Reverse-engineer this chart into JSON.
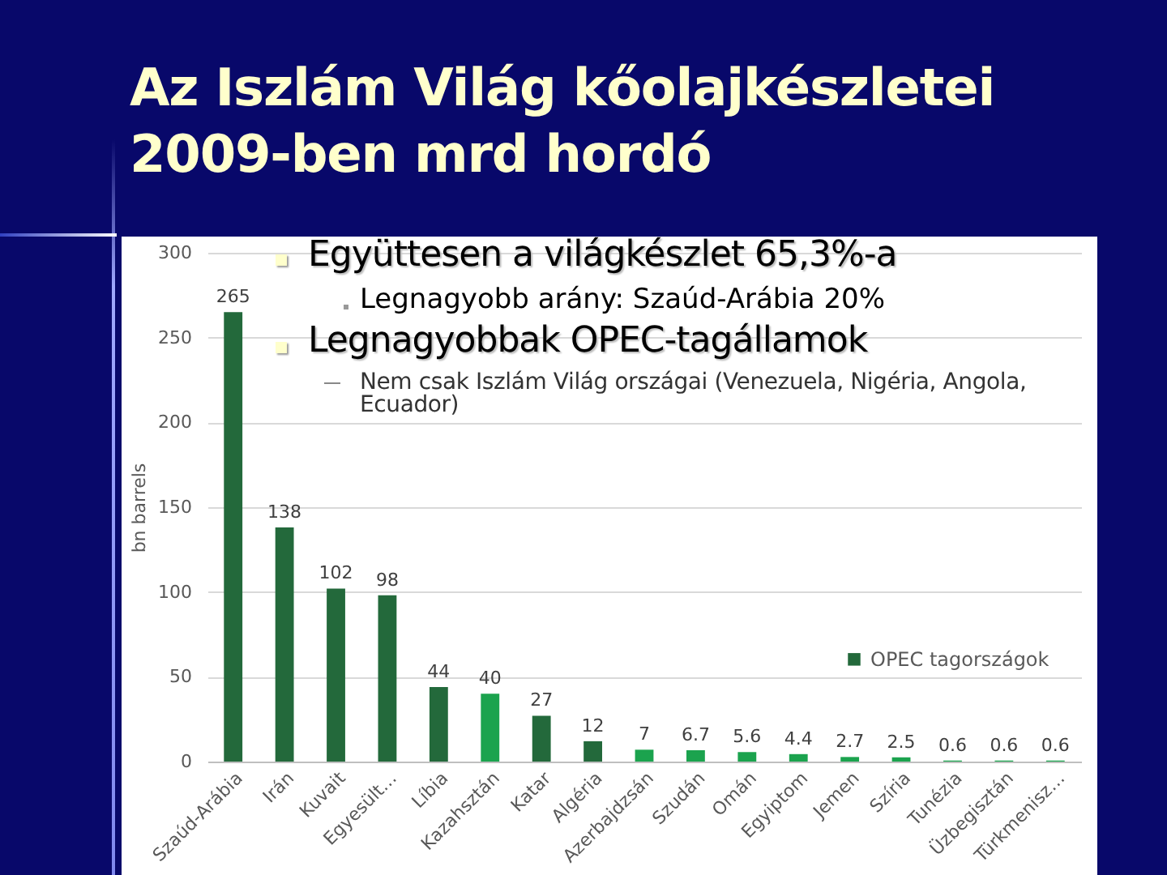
{
  "chart_data": {
    "type": "bar",
    "title": "Az Iszlám Világ kőolajkészletei 2009-ben mrd hordó",
    "ylabel": "bn barrels",
    "categories": [
      "Szaúd-Arábia",
      "Irán",
      "Kuvait",
      "Egyesült…",
      "Líbia",
      "Kazahsztán",
      "Katar",
      "Algéria",
      "Azerbajdzsán",
      "Szudán",
      "Omán",
      "Egyiptom",
      "Jemen",
      "Szíria",
      "Tunézia",
      "Üzbegisztán",
      "Türkmenisz…"
    ],
    "series": [
      {
        "name": "OPEC tagországok",
        "color": "#23693b",
        "values": [
          265,
          138,
          102,
          98,
          44,
          null,
          27,
          12,
          null,
          null,
          null,
          null,
          null,
          null,
          null,
          null,
          null
        ]
      },
      {
        "color": "#1ba34e",
        "values": [
          null,
          null,
          null,
          null,
          null,
          40,
          null,
          null,
          7,
          6.7,
          5.6,
          4.4,
          2.7,
          2.5,
          0.6,
          0.6,
          0.6
        ]
      }
    ],
    "stacked": true,
    "ylim": [
      0,
      300
    ],
    "yticks": [
      0,
      50,
      100,
      150,
      200,
      250,
      300
    ],
    "grid": "y",
    "legend": "right",
    "data_labels": true,
    "annotations": [
      "Együttesen a világkészlet 65,3%-a",
      "Legnagyobb arány: Szaúd-Arábia 20%",
      "Legnagyobbak OPEC-tagállamok",
      "Nem csak Iszlám Világ országai (Venezuela, Nigéria, Angola, Ecuador)"
    ]
  }
}
